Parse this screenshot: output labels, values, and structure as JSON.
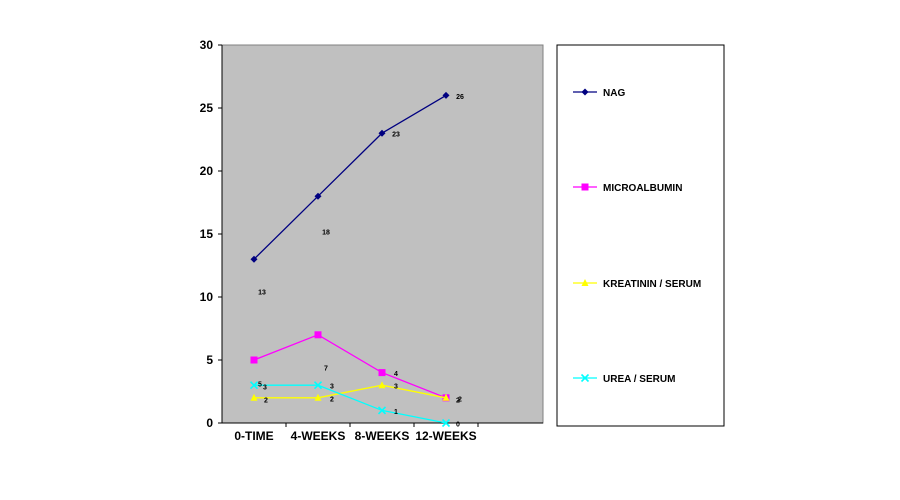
{
  "chart_data": {
    "type": "line",
    "categories": [
      "0-TIME",
      "4-WEEKS",
      "8-WEEKS",
      "12-WEEKS"
    ],
    "ylim": [
      0,
      30
    ],
    "yticks": [
      "0",
      "5",
      "10",
      "15",
      "20",
      "25",
      "30"
    ],
    "grid": false,
    "legend_position": "right",
    "series": [
      {
        "name": "NAG",
        "values": [
          13,
          18,
          23,
          26
        ],
        "color": "#000080",
        "marker": "diamond",
        "labels": [
          "13",
          "18",
          "23",
          "26"
        ]
      },
      {
        "name": "MICROALBUMIN",
        "values": [
          5,
          7,
          4,
          2
        ],
        "color": "#ff00ff",
        "marker": "square",
        "labels": [
          "5",
          "7",
          "4",
          "2"
        ]
      },
      {
        "name": "KREATININ / SERUM",
        "values": [
          2,
          2,
          3,
          2
        ],
        "color": "#ffff00",
        "marker": "triangle",
        "labels": [
          "2",
          "2",
          "3",
          "2"
        ]
      },
      {
        "name": "UREA / SERUM",
        "values": [
          3,
          3,
          1,
          0
        ],
        "color": "#00ffff",
        "marker": "x",
        "labels": [
          "3",
          "3",
          "1",
          "0"
        ]
      }
    ],
    "plot_background": "#c0c0c0"
  }
}
